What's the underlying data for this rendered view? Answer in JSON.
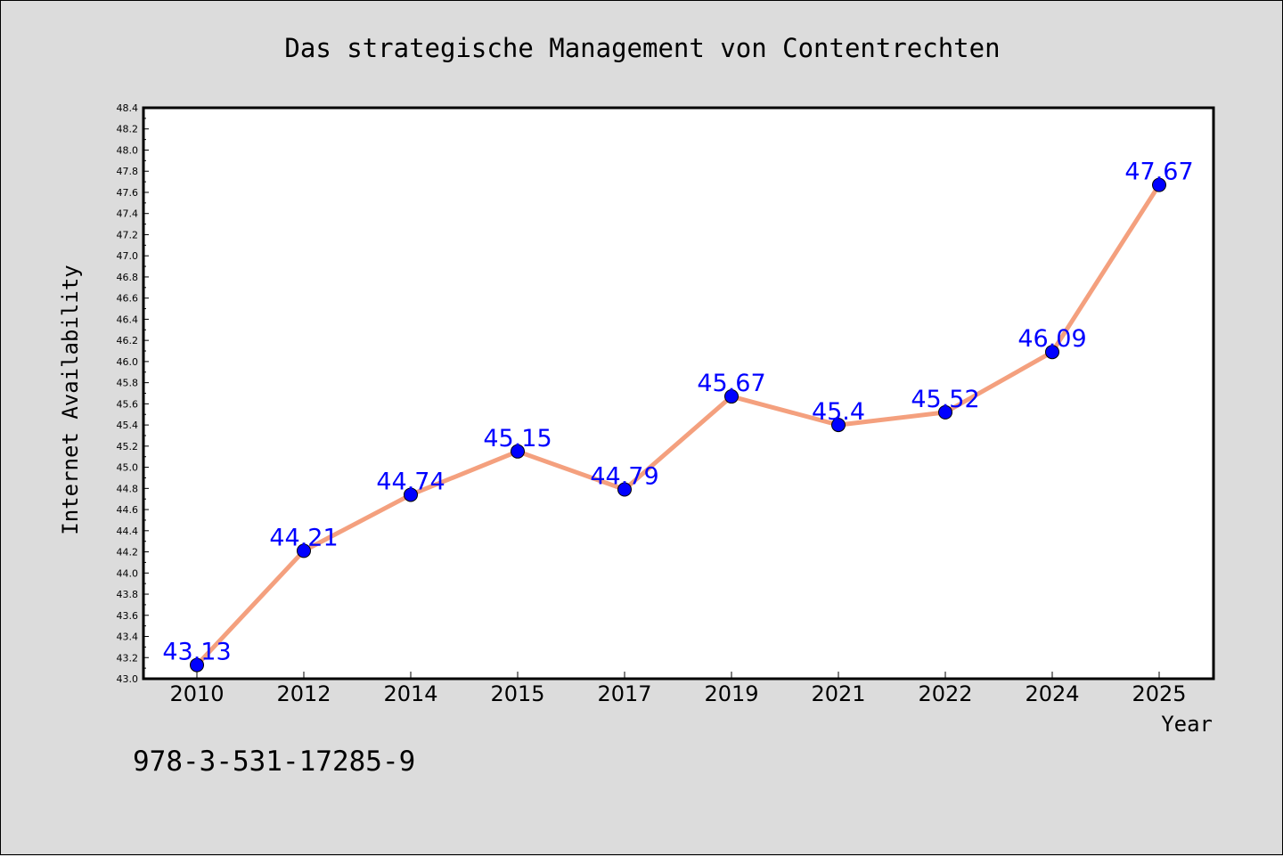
{
  "colors": {
    "background": "#dcdcdc",
    "plot_background": "#ffffff",
    "line": "#f4a07e",
    "marker": "#0000ff",
    "label": "#0000ff"
  },
  "footer": {
    "isbn": "978-3-531-17285-9"
  },
  "chart_data": {
    "type": "line",
    "title": "Das strategische Management von Contentrechten",
    "xlabel": "Year",
    "ylabel": "Internet Availability",
    "categories": [
      "2010",
      "2012",
      "2014",
      "2015",
      "2017",
      "2019",
      "2021",
      "2022",
      "2024",
      "2025"
    ],
    "series": [
      {
        "values": [
          43.13,
          44.21,
          44.74,
          45.15,
          44.79,
          45.67,
          45.4,
          45.52,
          46.09,
          47.67
        ],
        "labels": [
          "43.13",
          "44.21",
          "44.74",
          "45.15",
          "44.79",
          "45.67",
          "45.4",
          "45.52",
          "46.09",
          "47.67"
        ]
      }
    ],
    "ylim": [
      43.0,
      48.4
    ],
    "yticks": [
      "43.0",
      "43.2",
      "43.4",
      "43.6",
      "43.8",
      "44.0",
      "44.2",
      "44.4",
      "44.6",
      "44.8",
      "45.0",
      "45.2",
      "45.4",
      "45.6",
      "45.8",
      "46.0",
      "46.2",
      "46.4",
      "46.6",
      "46.8",
      "47.0",
      "47.2",
      "47.4",
      "47.6",
      "47.8",
      "48.0",
      "48.2",
      "48.4"
    ],
    "grid": false,
    "legend": "none"
  }
}
